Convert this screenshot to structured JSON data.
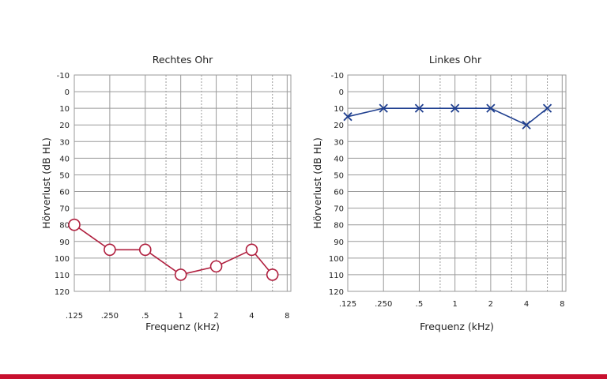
{
  "colors": {
    "right_ear": "#b0203f",
    "left_ear": "#1f3f8f",
    "grid": "#9a9a9a",
    "grid_dashed": "#9a9a9a",
    "text": "#222222",
    "bottom_bar": "#c8102e"
  },
  "chart_data": [
    {
      "type": "line",
      "title": "Rechtes Ohr",
      "xlabel": "Frequenz (kHz)",
      "ylabel": "Hörverlust (dB HL)",
      "y_reversed": true,
      "ylim": [
        -10,
        120
      ],
      "y_ticks": [
        "-10",
        "0",
        "10",
        "20",
        "30",
        "40",
        "50",
        "60",
        "70",
        "80",
        "90",
        "100",
        "110",
        "120"
      ],
      "x_ticks": [
        ".125",
        ".250",
        ".5",
        "1",
        "2",
        "4",
        "8"
      ],
      "grid": true,
      "marker": "circle",
      "series": [
        {
          "x": [
            0.125,
            0.25,
            0.5,
            1,
            2,
            4,
            6
          ],
          "y": [
            80,
            95,
            95,
            110,
            105,
            95,
            110
          ]
        }
      ]
    },
    {
      "type": "line",
      "title": "Linkes Ohr",
      "xlabel": "Frequenz (kHz)",
      "ylabel": "Hörverlust (dB HL)",
      "y_reversed": true,
      "ylim": [
        -10,
        120
      ],
      "y_ticks": [
        "-10",
        "0",
        "10",
        "20",
        "30",
        "40",
        "50",
        "60",
        "70",
        "80",
        "90",
        "100",
        "110",
        "120"
      ],
      "x_ticks": [
        ".125",
        ".250",
        ".5",
        "1",
        "2",
        "4",
        "8"
      ],
      "grid": true,
      "marker": "cross",
      "series": [
        {
          "x": [
            0.125,
            0.25,
            0.5,
            1,
            2,
            4,
            6
          ],
          "y": [
            15,
            10,
            10,
            10,
            10,
            20,
            10
          ]
        }
      ]
    }
  ]
}
